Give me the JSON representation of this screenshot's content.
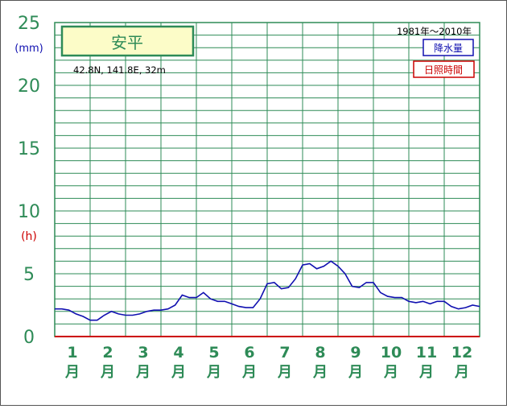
{
  "chart_data": {
    "type": "line",
    "station": "安平",
    "location_text": "42.8N,  141.8E,  32m",
    "period": "1981年〜2010年",
    "legend": [
      {
        "label": "降水量",
        "color": "#1010b0"
      },
      {
        "label": "日照時間",
        "color": "#cc0000"
      }
    ],
    "unit_mm": "(mm)",
    "unit_h": "(h)",
    "y_ticks": [
      "0",
      "5",
      "10",
      "15",
      "20",
      "25"
    ],
    "ylim": [
      0,
      25
    ],
    "months": [
      "1",
      "2",
      "3",
      "4",
      "5",
      "6",
      "7",
      "8",
      "9",
      "10",
      "11",
      "12"
    ],
    "month_suffix": "月",
    "series": [
      {
        "name": "降水量",
        "color": "#1010b0",
        "x": [
          1.0,
          1.2,
          1.4,
          1.6,
          1.8,
          2.0,
          2.2,
          2.4,
          2.6,
          2.8,
          3.0,
          3.2,
          3.4,
          3.6,
          3.8,
          4.0,
          4.2,
          4.4,
          4.6,
          4.8,
          5.0,
          5.2,
          5.4,
          5.6,
          5.8,
          6.0,
          6.2,
          6.4,
          6.6,
          6.8,
          7.0,
          7.2,
          7.4,
          7.6,
          7.8,
          8.0,
          8.2,
          8.4,
          8.6,
          8.8,
          9.0,
          9.2,
          9.4,
          9.6,
          9.8,
          10.0,
          10.2,
          10.4,
          10.6,
          10.8,
          11.0,
          11.2,
          11.4,
          11.6,
          11.8,
          12.0,
          12.2,
          12.4,
          12.6,
          12.8,
          13.0
        ],
        "values": [
          2.2,
          2.2,
          2.1,
          1.8,
          1.6,
          1.3,
          1.3,
          1.7,
          2.0,
          1.8,
          1.7,
          1.7,
          1.8,
          2.0,
          2.1,
          2.1,
          2.2,
          2.5,
          3.3,
          3.1,
          3.1,
          3.5,
          3.0,
          2.8,
          2.8,
          2.6,
          2.4,
          2.3,
          2.3,
          3.0,
          4.2,
          4.3,
          3.8,
          3.9,
          4.6,
          5.7,
          5.8,
          5.4,
          5.6,
          6.0,
          5.6,
          5.0,
          4.0,
          3.9,
          4.3,
          4.3,
          3.5,
          3.2,
          3.1,
          3.1,
          2.8,
          2.7,
          2.8,
          2.6,
          2.8,
          2.8,
          2.4,
          2.2,
          2.3,
          2.5,
          2.4
        ]
      },
      {
        "name": "日照時間",
        "color": "#cc0000",
        "x": [
          1.0,
          13.0
        ],
        "values": [
          0,
          0
        ]
      }
    ]
  }
}
